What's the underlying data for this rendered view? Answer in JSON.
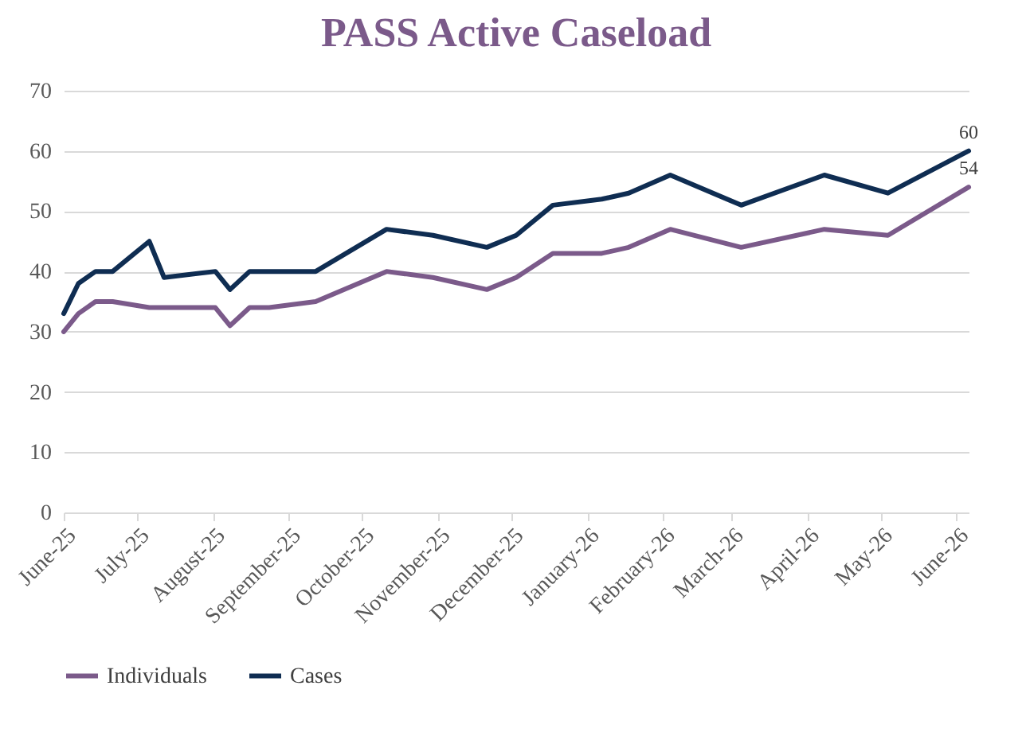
{
  "chart_data": {
    "type": "line",
    "title": "PASS Active Caseload",
    "x": [
      "2025-06-01",
      "2025-06-07",
      "2025-06-14",
      "2025-06-21",
      "2025-07-06",
      "2025-07-12",
      "2025-08-02",
      "2025-08-08",
      "2025-08-16",
      "2025-08-24",
      "2025-09-12",
      "2025-10-11",
      "2025-10-30",
      "2025-11-21",
      "2025-12-03",
      "2025-12-18",
      "2026-01-07",
      "2026-01-18",
      "2026-02-04",
      "2026-03-05",
      "2026-04-08",
      "2026-05-04",
      "2026-06-06"
    ],
    "series": [
      {
        "name": "Individuals",
        "color": "#7b5a8a",
        "values": [
          30,
          33,
          35,
          35,
          34,
          34,
          34,
          31,
          34,
          34,
          35,
          40,
          39,
          37,
          39,
          43,
          43,
          44,
          47,
          44,
          47,
          46,
          54
        ],
        "value_labels": [
          null,
          null,
          null,
          null,
          null,
          null,
          null,
          null,
          null,
          null,
          null,
          null,
          null,
          null,
          null,
          null,
          null,
          null,
          null,
          null,
          null,
          null,
          "54"
        ]
      },
      {
        "name": "Cases",
        "color": "#0f2d52",
        "values": [
          33,
          38,
          40,
          40,
          45,
          39,
          40,
          37,
          40,
          40,
          40,
          47,
          46,
          44,
          46,
          51,
          52,
          53,
          56,
          51,
          56,
          53,
          60
        ],
        "value_labels": [
          null,
          null,
          null,
          null,
          null,
          null,
          null,
          null,
          null,
          null,
          null,
          null,
          null,
          null,
          null,
          null,
          null,
          null,
          null,
          null,
          null,
          null,
          "60"
        ]
      }
    ],
    "xlim": [
      "2025-06-01",
      "2026-06-06"
    ],
    "xticks": [
      {
        "value": "2025-06-01",
        "label": "June-25"
      },
      {
        "value": "2025-07-01",
        "label": "July-25"
      },
      {
        "value": "2025-08-01",
        "label": "August-25"
      },
      {
        "value": "2025-09-01",
        "label": "September-25"
      },
      {
        "value": "2025-10-01",
        "label": "October-25"
      },
      {
        "value": "2025-11-01",
        "label": "November-25"
      },
      {
        "value": "2025-12-01",
        "label": "December-25"
      },
      {
        "value": "2026-01-01",
        "label": "January-26"
      },
      {
        "value": "2026-02-01",
        "label": "February-26"
      },
      {
        "value": "2026-03-01",
        "label": "March-26"
      },
      {
        "value": "2026-04-01",
        "label": "April-26"
      },
      {
        "value": "2026-05-01",
        "label": "May-26"
      },
      {
        "value": "2026-06-01",
        "label": "June-26"
      }
    ],
    "ylim": [
      0,
      70
    ],
    "yticks": [
      0,
      10,
      20,
      30,
      40,
      50,
      60,
      70
    ],
    "grid": "y",
    "legend": "bottom",
    "marker": "none",
    "line_style": "solid"
  }
}
